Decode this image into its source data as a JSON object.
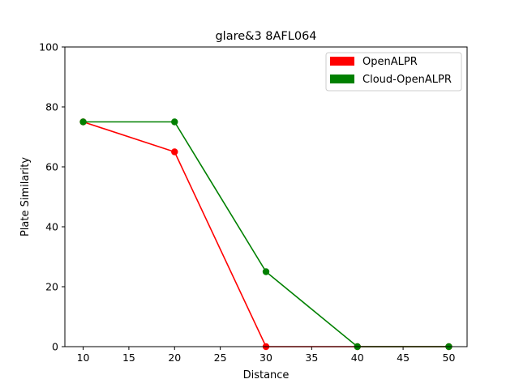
{
  "chart_data": {
    "type": "line",
    "title": "glare&3 8AFL064",
    "xlabel": "Distance",
    "ylabel": "Plate Similarity",
    "xlim": [
      8,
      52
    ],
    "ylim": [
      0,
      100
    ],
    "x_ticks": [
      10,
      15,
      20,
      25,
      30,
      35,
      40,
      45,
      50
    ],
    "y_ticks": [
      0,
      20,
      40,
      60,
      80,
      100
    ],
    "legend_position": "top-right",
    "grid": false,
    "series": [
      {
        "name": "OpenALPR",
        "color": "#ff0000",
        "x": [
          10,
          20,
          30,
          40,
          50
        ],
        "y": [
          75,
          65,
          0,
          0,
          0
        ]
      },
      {
        "name": "Cloud-OpenALPR",
        "color": "#008000",
        "x": [
          10,
          20,
          30,
          40,
          50
        ],
        "y": [
          75,
          75,
          25,
          0,
          0
        ]
      }
    ]
  }
}
